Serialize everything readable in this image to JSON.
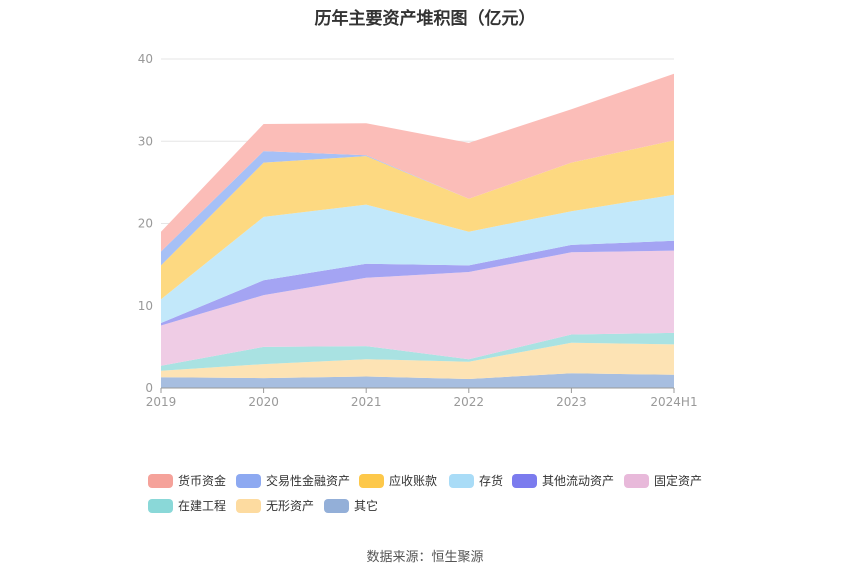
{
  "title": "历年主要资产堆积图（亿元）",
  "source": "数据来源：恒生聚源",
  "chart_data": {
    "type": "area",
    "stacked": true,
    "title": "历年主要资产堆积图（亿元）",
    "xlabel": "",
    "ylabel": "",
    "ylim": [
      0,
      40
    ],
    "yticks": [
      0,
      10,
      20,
      30,
      40
    ],
    "grid": true,
    "categories": [
      "2019",
      "2020",
      "2021",
      "2022",
      "2023",
      "2024H1"
    ],
    "series": [
      {
        "name": "其它",
        "color": "#a7bee0",
        "values": [
          1.3,
          1.2,
          1.4,
          1.1,
          1.8,
          1.6
        ]
      },
      {
        "name": "无形资产",
        "color": "#fde3b4",
        "values": [
          0.8,
          1.7,
          2.1,
          2.1,
          3.7,
          3.7
        ]
      },
      {
        "name": "在建工程",
        "color": "#a9e2e2",
        "values": [
          0.6,
          2.1,
          1.6,
          0.3,
          1.0,
          1.4
        ]
      },
      {
        "name": "固定资产",
        "color": "#efcce5",
        "values": [
          4.9,
          6.3,
          8.3,
          10.6,
          10.0,
          10.0
        ]
      },
      {
        "name": "其他流动资产",
        "color": "#a4a4f3",
        "values": [
          0.3,
          1.8,
          1.7,
          0.8,
          0.9,
          1.2
        ]
      },
      {
        "name": "存货",
        "color": "#c2e8fa",
        "values": [
          2.9,
          7.7,
          7.2,
          4.1,
          4.1,
          5.6
        ]
      },
      {
        "name": "应收账款",
        "color": "#fdd981",
        "values": [
          4.1,
          6.6,
          5.9,
          4.0,
          5.9,
          6.6
        ]
      },
      {
        "name": "交易性金融资产",
        "color": "#a6c0f6",
        "values": [
          1.7,
          1.4,
          0.1,
          0.0,
          0.0,
          0.0
        ]
      },
      {
        "name": "货币资金",
        "color": "#fbbdb8",
        "values": [
          2.4,
          3.3,
          3.9,
          6.8,
          6.5,
          8.1
        ]
      }
    ]
  },
  "legend": [
    {
      "label": "货币资金",
      "color": "#f5a29a"
    },
    {
      "label": "交易性金融资产",
      "color": "#8da9f1"
    },
    {
      "label": "应收账款",
      "color": "#fdc84a"
    },
    {
      "label": "存货",
      "color": "#a9dcf7"
    },
    {
      "label": "其他流动资产",
      "color": "#7b7bee"
    },
    {
      "label": "固定资产",
      "color": "#e8b9da"
    },
    {
      "label": "在建工程",
      "color": "#8ad8d8"
    },
    {
      "label": "无形资产",
      "color": "#fddba0"
    },
    {
      "label": "其它",
      "color": "#93afd8"
    }
  ]
}
